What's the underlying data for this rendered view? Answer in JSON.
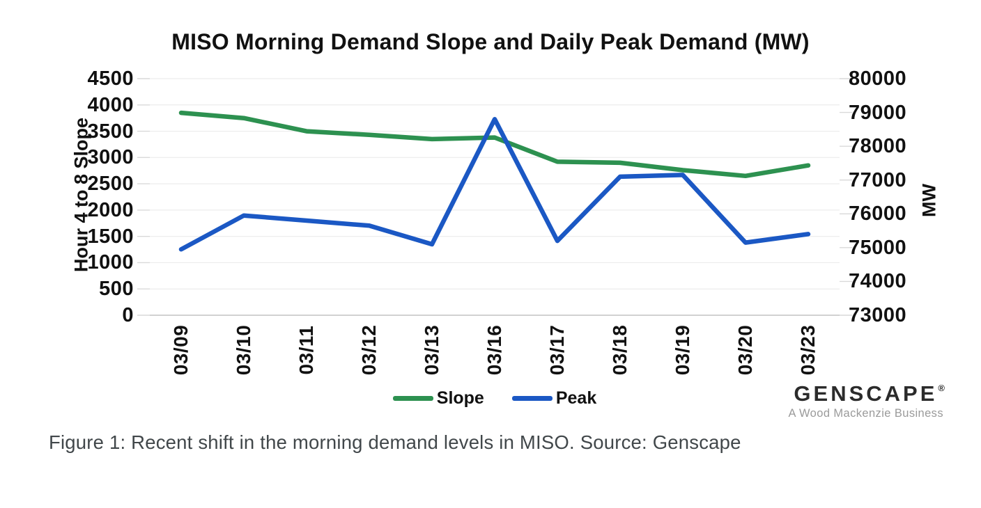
{
  "title": "MISO Morning Demand Slope and Daily Peak Demand (MW)",
  "caption": "Figure 1: Recent shift in the morning demand levels in MISO. Source: Genscape",
  "logo": {
    "brand": "GENSCAPE",
    "registered": "®",
    "tagline": "A Wood Mackenzie Business"
  },
  "legend": {
    "items": [
      {
        "label": "Slope",
        "color": "#2D9150"
      },
      {
        "label": "Peak",
        "color": "#1B58C4"
      }
    ]
  },
  "chart_data": {
    "type": "line",
    "title": "MISO Morning Demand Slope and Daily Peak Demand (MW)",
    "categories": [
      "03/09",
      "03/10",
      "03/11",
      "03/12",
      "03/13",
      "03/16",
      "03/17",
      "03/18",
      "03/19",
      "03/20",
      "03/23"
    ],
    "series": [
      {
        "name": "Slope",
        "axis": "left",
        "color": "#2D9150",
        "values": [
          3850,
          3750,
          3500,
          3430,
          3350,
          3380,
          2920,
          2900,
          2760,
          2650,
          2850
        ]
      },
      {
        "name": "Peak",
        "axis": "right",
        "color": "#1B58C4",
        "values": [
          74950,
          75950,
          75800,
          75650,
          75100,
          78800,
          75200,
          77100,
          77150,
          75150,
          75400
        ]
      }
    ],
    "left_axis": {
      "label": "Hour 4 to 8 Slope",
      "min": 0,
      "max": 4500,
      "step": 500,
      "ticks": [
        4500,
        4000,
        3500,
        3000,
        2500,
        2000,
        1500,
        1000,
        500,
        0
      ]
    },
    "right_axis": {
      "label": "MW",
      "min": 73000,
      "max": 80000,
      "step": 1000,
      "ticks": [
        80000,
        79000,
        78000,
        77000,
        76000,
        75000,
        74000,
        73000
      ]
    },
    "grid": "horizontal",
    "legend_position": "bottom"
  }
}
